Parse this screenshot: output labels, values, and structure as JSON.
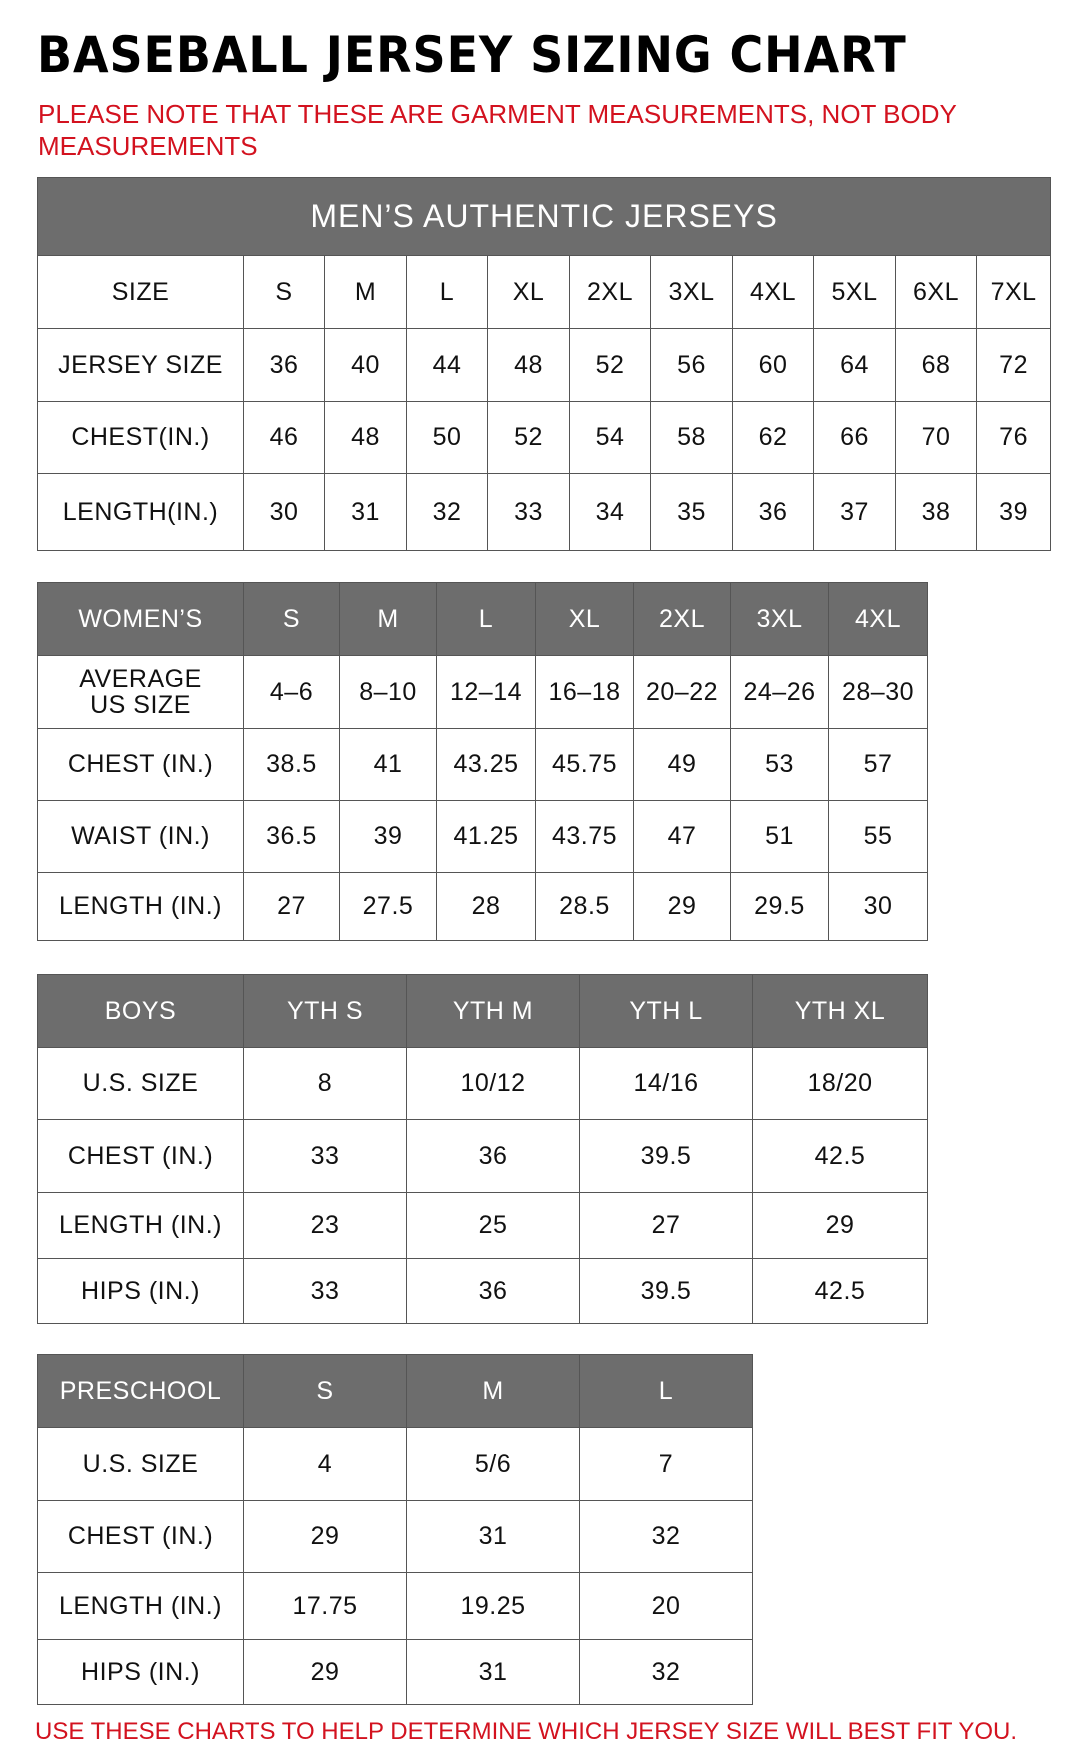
{
  "title": "BASEBALL JERSEY SIZING CHART",
  "note": "PLEASE NOTE THAT THESE ARE GARMENT MEASUREMENTS, NOT BODY MEASUREMENTS",
  "footer": "USE THESE CHARTS TO HELP DETERMINE WHICH JERSEY SIZE WILL BEST FIT YOU.",
  "colors": {
    "header_bg": "#6d6d6d",
    "accent_red": "#d3121f"
  },
  "tables": [
    {
      "caption": "MEN’S AUTHENTIC JERSEYS",
      "header_style": "plain",
      "header": [
        "SIZE",
        "S",
        "M",
        "L",
        "XL",
        "2XL",
        "3XL",
        "4XL",
        "5XL",
        "6XL",
        "7XL"
      ],
      "rows": [
        [
          "JERSEY SIZE",
          "36",
          "40",
          "44",
          "48",
          "52",
          "56",
          "60",
          "64",
          "68",
          "72"
        ],
        [
          "CHEST(IN.)",
          "46",
          "48",
          "50",
          "52",
          "54",
          "58",
          "62",
          "66",
          "70",
          "76"
        ],
        [
          "LENGTH(IN.)",
          "30",
          "31",
          "32",
          "33",
          "34",
          "35",
          "36",
          "37",
          "38",
          "39"
        ]
      ]
    },
    {
      "header_style": "grey",
      "header": [
        "WOMEN’S",
        "S",
        "M",
        "L",
        "XL",
        "2XL",
        "3XL",
        "4XL"
      ],
      "rows": [
        [
          "AVERAGE US SIZE",
          "4–6",
          "8–10",
          "12–14",
          "16–18",
          "20–22",
          "24–26",
          "28–30"
        ],
        [
          "CHEST (IN.)",
          "38.5",
          "41",
          "43.25",
          "45.75",
          "49",
          "53",
          "57"
        ],
        [
          "WAIST (IN.)",
          "36.5",
          "39",
          "41.25",
          "43.75",
          "47",
          "51",
          "55"
        ],
        [
          "LENGTH (IN.)",
          "27",
          "27.5",
          "28",
          "28.5",
          "29",
          "29.5",
          "30"
        ]
      ]
    },
    {
      "header_style": "grey",
      "header": [
        "BOYS",
        "YTH S",
        "YTH M",
        "YTH L",
        "YTH XL"
      ],
      "rows": [
        [
          "U.S. SIZE",
          "8",
          "10/12",
          "14/16",
          "18/20"
        ],
        [
          "CHEST (IN.)",
          "33",
          "36",
          "39.5",
          "42.5"
        ],
        [
          "LENGTH (IN.)",
          "23",
          "25",
          "27",
          "29"
        ],
        [
          "HIPS (IN.)",
          "33",
          "36",
          "39.5",
          "42.5"
        ]
      ]
    },
    {
      "header_style": "grey",
      "header": [
        "PRESCHOOL",
        "S",
        "M",
        "L"
      ],
      "rows": [
        [
          "U.S. SIZE",
          "4",
          "5/6",
          "7"
        ],
        [
          "CHEST (IN.)",
          "29",
          "31",
          "32"
        ],
        [
          "LENGTH (IN.)",
          "17.75",
          "19.25",
          "20"
        ],
        [
          "HIPS (IN.)",
          "29",
          "31",
          "32"
        ]
      ]
    }
  ]
}
